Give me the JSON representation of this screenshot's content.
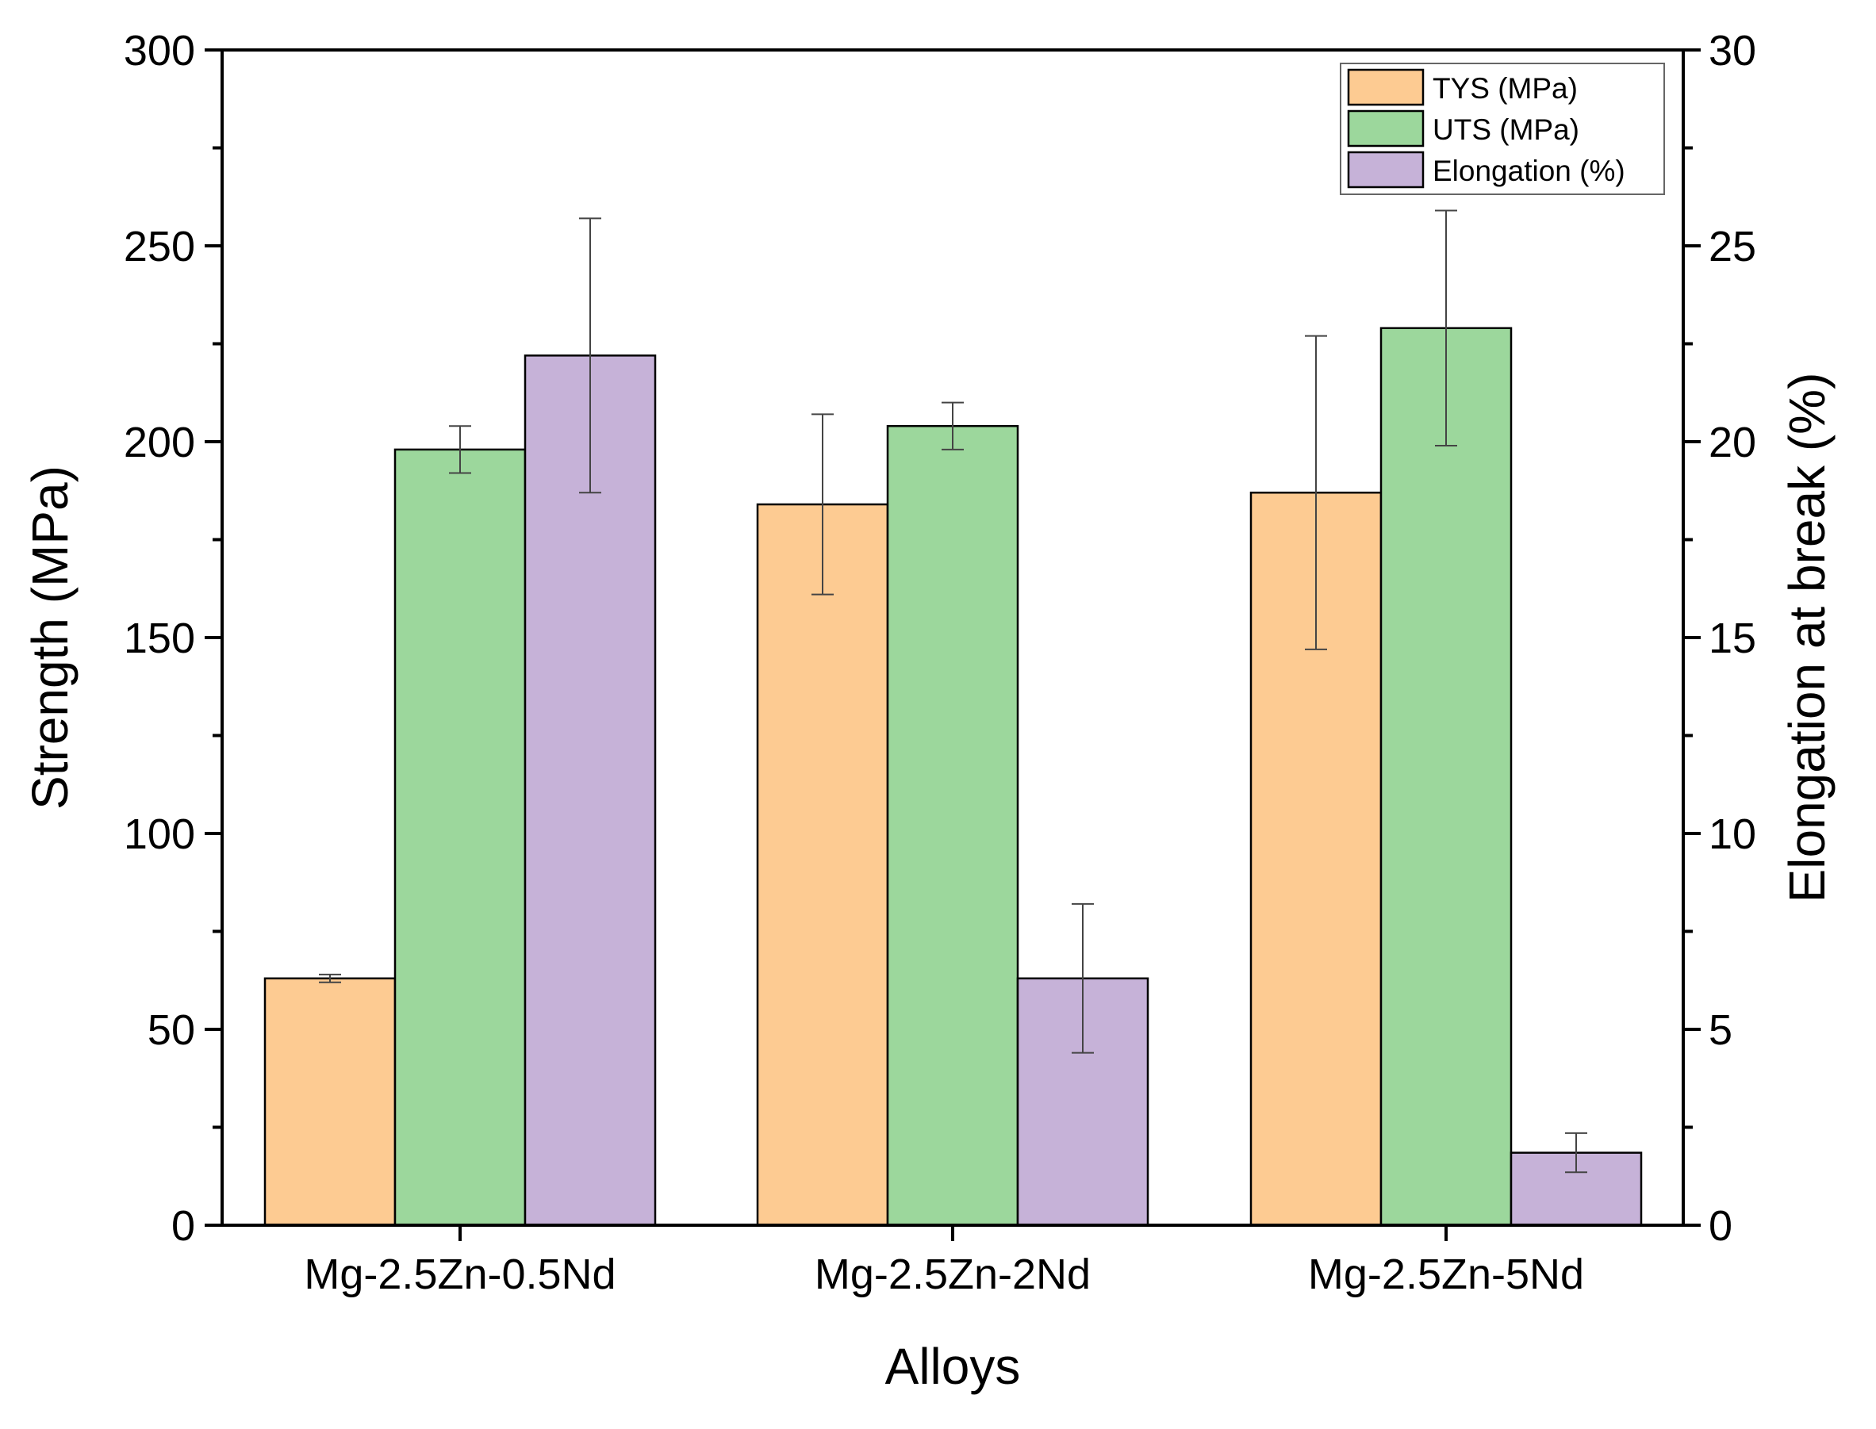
{
  "chart_data": {
    "type": "bar",
    "title": "",
    "xlabel": "Alloys",
    "ylabel": "Strength (MPa)",
    "y2label": "Elongation at break (%)",
    "ylim": [
      0,
      300
    ],
    "y2lim": [
      0,
      30
    ],
    "yticks": [
      0,
      50,
      100,
      150,
      200,
      250,
      300
    ],
    "y2ticks": [
      0,
      5,
      10,
      15,
      20,
      25,
      30
    ],
    "categories": [
      "Mg-2.5Zn-0.5Nd",
      "Mg-2.5Zn-2Nd",
      "Mg-2.5Zn-5Nd"
    ],
    "legend_position": "top-right",
    "series": [
      {
        "name": "TYS (MPa)",
        "axis": "left",
        "color": "#FDCB92",
        "values": [
          63,
          184,
          187
        ],
        "errors": [
          1,
          23,
          40
        ]
      },
      {
        "name": "UTS (MPa)",
        "axis": "left",
        "color": "#9CD79C",
        "values": [
          198,
          204,
          229
        ],
        "errors": [
          6,
          6,
          30
        ]
      },
      {
        "name": "Elongation (%)",
        "axis": "right",
        "color": "#C6B2D8",
        "values": [
          22.2,
          6.3,
          1.85
        ],
        "errors": [
          3.5,
          1.9,
          0.5
        ]
      }
    ]
  }
}
